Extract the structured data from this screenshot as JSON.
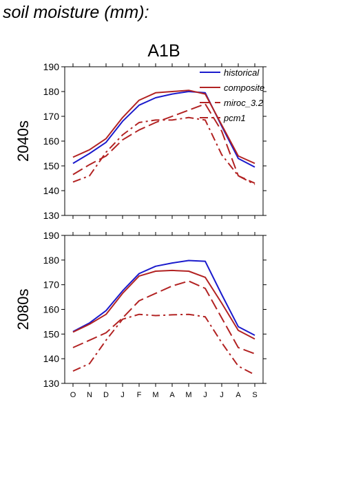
{
  "page": {
    "title": "soil moisture (mm):"
  },
  "chart_data": [
    {
      "type": "line",
      "title": "A1B",
      "ylabel": "2040s",
      "xlabel": "",
      "categories": [
        "O",
        "N",
        "D",
        "J",
        "F",
        "M",
        "A",
        "M",
        "J",
        "J",
        "A",
        "S"
      ],
      "ylim": [
        130,
        190
      ],
      "yticks": [
        130,
        140,
        150,
        160,
        170,
        180,
        190
      ],
      "grid": false,
      "legend_position": "top-right",
      "series": [
        {
          "name": "historical",
          "color": "#1a1acc",
          "dash": "solid",
          "values": [
            151,
            155,
            159.5,
            168,
            174.5,
            177.5,
            179,
            180,
            179.5,
            166,
            153,
            149.5
          ]
        },
        {
          "name": "composite",
          "color": "#b22222",
          "dash": "solid",
          "values": [
            153.5,
            156.5,
            161,
            169.5,
            176.5,
            179.5,
            180,
            180.5,
            179,
            166.5,
            154,
            151
          ]
        },
        {
          "name": "miroc_3.2",
          "color": "#b22222",
          "dash": "long-dash",
          "values": [
            146.5,
            150.5,
            154,
            160.5,
            164.5,
            167.5,
            170,
            172.5,
            175,
            164,
            146,
            143
          ]
        },
        {
          "name": "pcm1",
          "color": "#b22222",
          "dash": "dash-dot",
          "values": [
            143.5,
            146,
            155.5,
            162.5,
            167.5,
            168.5,
            168.5,
            169.5,
            168.5,
            154.5,
            146,
            142.5
          ]
        }
      ]
    },
    {
      "type": "line",
      "title": "",
      "ylabel": "2080s",
      "xlabel": "",
      "categories": [
        "O",
        "N",
        "D",
        "J",
        "F",
        "M",
        "A",
        "M",
        "J",
        "J",
        "A",
        "S"
      ],
      "ylim": [
        130,
        190
      ],
      "yticks": [
        130,
        140,
        150,
        160,
        170,
        180,
        190
      ],
      "grid": false,
      "series": [
        {
          "name": "historical",
          "color": "#1a1acc",
          "dash": "solid",
          "values": [
            151,
            154.5,
            159.5,
            167.5,
            174.5,
            177.5,
            178.8,
            179.8,
            179.5,
            166,
            153,
            149.5
          ]
        },
        {
          "name": "composite",
          "color": "#b22222",
          "dash": "solid",
          "values": [
            150.8,
            154,
            158,
            166.5,
            173.5,
            175.5,
            175.8,
            175.5,
            173,
            162.5,
            151.5,
            148
          ]
        },
        {
          "name": "miroc_3.2",
          "color": "#b22222",
          "dash": "long-dash",
          "values": [
            144.5,
            147.5,
            150.5,
            156.5,
            163.5,
            166.5,
            169.5,
            171.5,
            168.5,
            156.5,
            144.5,
            142
          ]
        },
        {
          "name": "pcm1",
          "color": "#b22222",
          "dash": "dash-dot",
          "values": [
            135,
            138,
            147.5,
            156,
            158,
            157.5,
            157.8,
            158,
            157,
            146.5,
            137,
            133.5
          ]
        }
      ]
    }
  ]
}
